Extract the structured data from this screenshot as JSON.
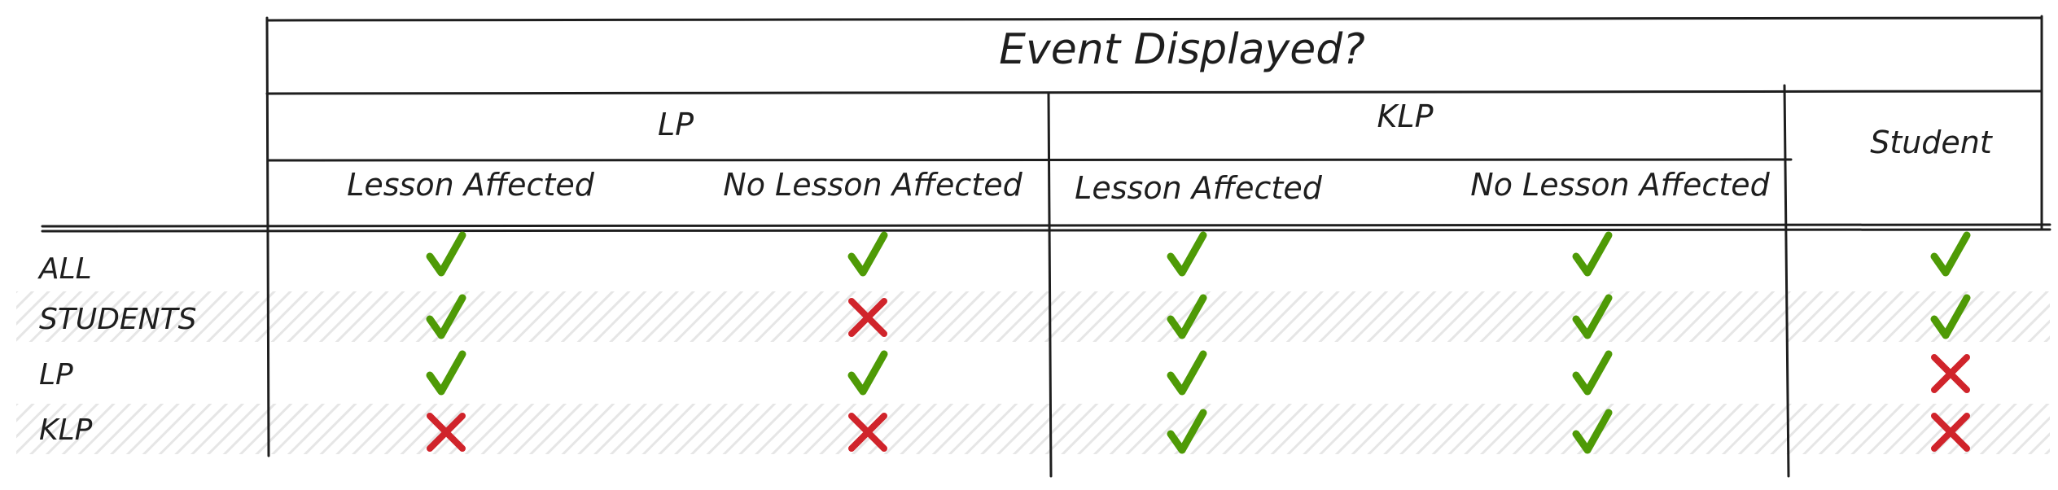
{
  "table": {
    "title": "Event Displayed?",
    "groups": [
      {
        "label": "LP"
      },
      {
        "label": "KLP"
      },
      {
        "label": "Student"
      }
    ],
    "subheaders": [
      "Lesson Affected",
      "No Lesson Affected",
      "Lesson Affected",
      "No Lesson Affected"
    ],
    "rows": [
      {
        "label": "ALL",
        "values": [
          true,
          true,
          true,
          true,
          true
        ]
      },
      {
        "label": "STUDENTS",
        "values": [
          true,
          false,
          true,
          true,
          true
        ]
      },
      {
        "label": "LP",
        "values": [
          true,
          true,
          true,
          true,
          false
        ]
      },
      {
        "label": "KLP",
        "values": [
          false,
          false,
          true,
          true,
          false
        ]
      }
    ],
    "colors": {
      "check": "#4e9a06",
      "cross": "#d0242b",
      "hatch": "#e6e6e6",
      "ink": "#1e1e1e"
    },
    "icons": {
      "yes": "check-icon",
      "no": "cross-icon"
    }
  }
}
